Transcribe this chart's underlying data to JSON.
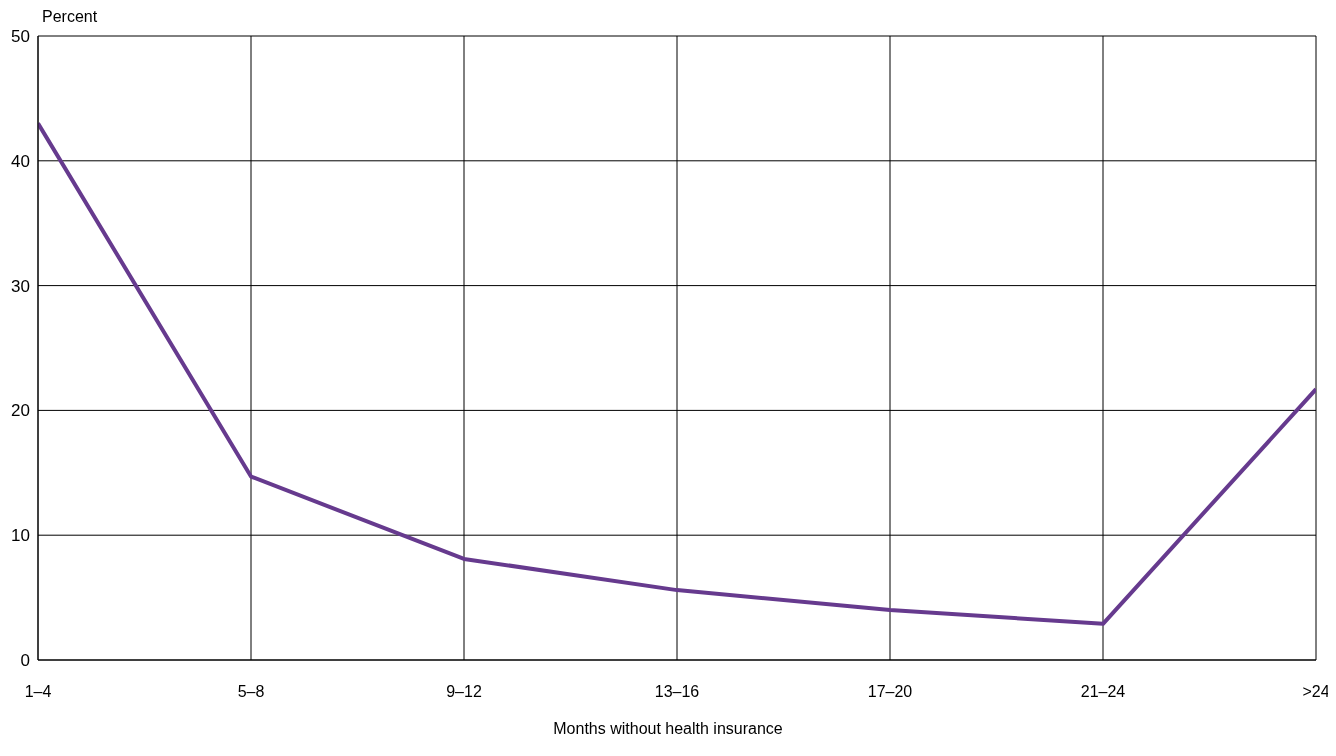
{
  "chart_data": {
    "type": "line",
    "ylabel": "Percent",
    "xlabel": "Months without health insurance",
    "categories": [
      "1–4",
      "5–8",
      "9–12",
      "13–16",
      "17–20",
      "21–24",
      ">24"
    ],
    "series": [
      {
        "color": "#663a8e",
        "values": [
          43.0,
          14.7,
          8.1,
          5.6,
          4.0,
          2.9,
          21.7
        ]
      }
    ],
    "ylim": [
      0,
      50
    ],
    "yticks": [
      0,
      10,
      20,
      30,
      40,
      50
    ],
    "grid": true,
    "legend": false,
    "marker": "none",
    "line_style": "solid"
  }
}
